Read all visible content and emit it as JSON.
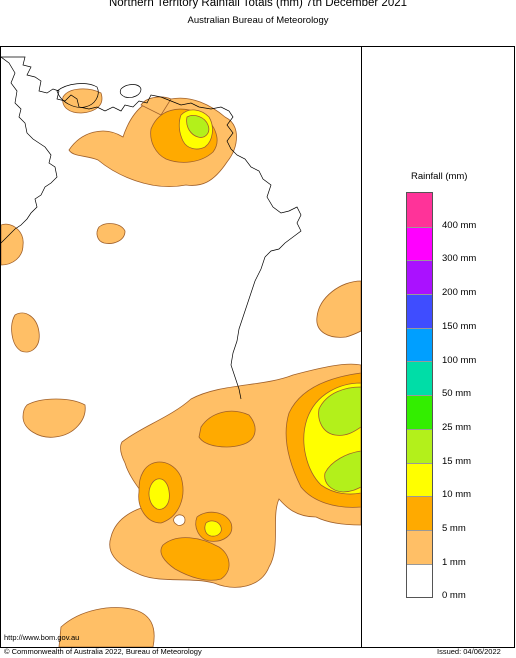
{
  "title": "Northern Territory Rainfall Totals (mm) 7th December 2021",
  "subtitle": "Australian Bureau of Meteorology",
  "legend": {
    "title": "Rainfall (mm)",
    "bins": [
      {
        "label": "400 mm",
        "color": "#ff3399"
      },
      {
        "label": "300 mm",
        "color": "#ff00ff"
      },
      {
        "label": "200 mm",
        "color": "#aa11ff"
      },
      {
        "label": "150 mm",
        "color": "#3f4dff"
      },
      {
        "label": "100 mm",
        "color": "#009fff"
      },
      {
        "label": "50 mm",
        "color": "#00dda7"
      },
      {
        "label": "25 mm",
        "color": "#33ee00"
      },
      {
        "label": "15 mm",
        "color": "#b3f01b"
      },
      {
        "label": "10 mm",
        "color": "#ffff00"
      },
      {
        "label": "5 mm",
        "color": "#ffaa00"
      },
      {
        "label": "1 mm",
        "color": "#ffbf66"
      },
      {
        "label": "0 mm",
        "color": "#ffffff"
      }
    ]
  },
  "map": {
    "background": "#ffffff",
    "coastline_color": "#000000",
    "contour_color": "#a0602a"
  },
  "footer": {
    "url": "http://www.bom.gov.au",
    "copyright": "© Commonwealth of Australia 2022, Bureau of Meteorology",
    "issued": "Issued: 04/06/2022"
  }
}
